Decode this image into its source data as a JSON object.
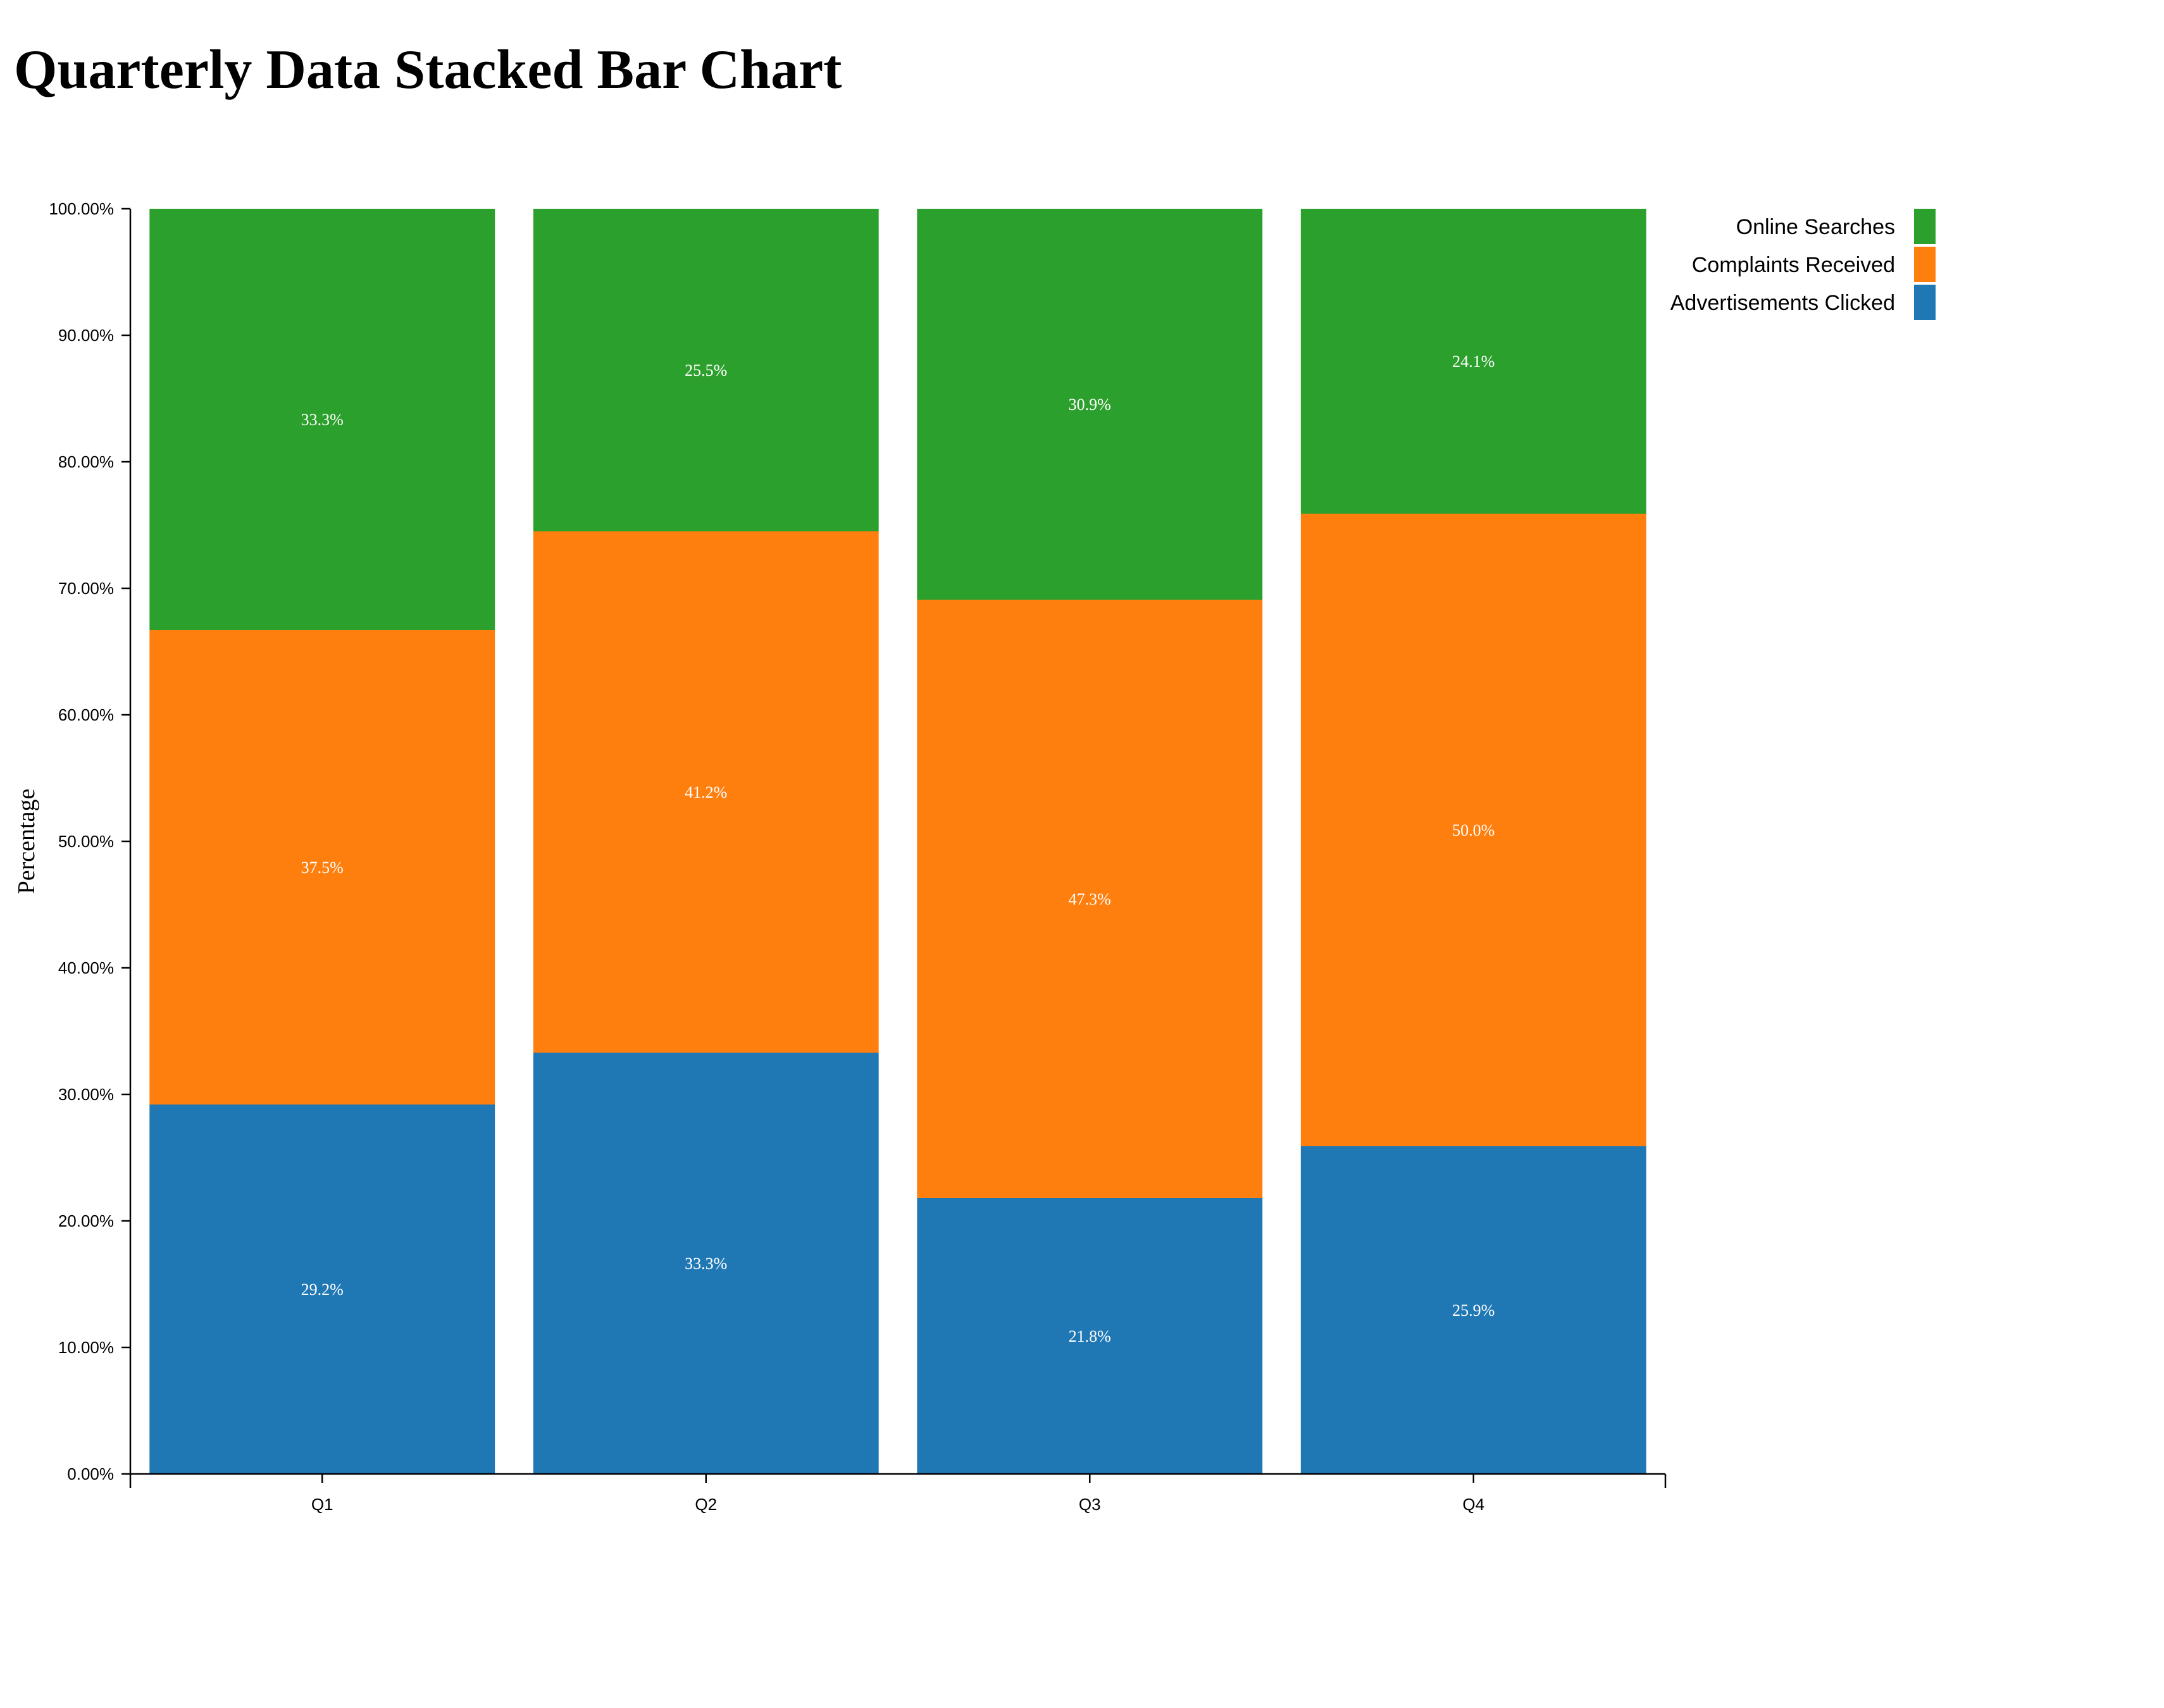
{
  "chart_data": {
    "type": "bar",
    "stacked": true,
    "title": "Quarterly Data Stacked Bar Chart",
    "xlabel": "",
    "ylabel": "Percentage",
    "ylim": [
      0,
      100
    ],
    "y_tick_labels": [
      "0.00%",
      "10.00%",
      "20.00%",
      "30.00%",
      "40.00%",
      "50.00%",
      "60.00%",
      "70.00%",
      "80.00%",
      "90.00%",
      "100.00%"
    ],
    "categories": [
      "Q1",
      "Q2",
      "Q3",
      "Q4"
    ],
    "series": [
      {
        "name": "Advertisements Clicked",
        "color": "#1f77b4",
        "values": [
          29.2,
          33.3,
          21.8,
          25.9
        ],
        "labels": [
          "29.2%",
          "33.3%",
          "21.8%",
          "25.9%"
        ]
      },
      {
        "name": "Complaints Received",
        "color": "#ff7f0e",
        "values": [
          37.5,
          41.2,
          47.3,
          50.0
        ],
        "labels": [
          "37.5%",
          "41.2%",
          "47.3%",
          "50.0%"
        ]
      },
      {
        "name": "Online Searches",
        "color": "#2ca02c",
        "values": [
          33.3,
          25.5,
          30.9,
          24.1
        ],
        "labels": [
          "33.3%",
          "25.5%",
          "30.9%",
          "24.1%"
        ]
      }
    ],
    "legend_order": [
      "Online Searches",
      "Complaints Received",
      "Advertisements Clicked"
    ],
    "legend_position": "top-right",
    "grid": false
  }
}
